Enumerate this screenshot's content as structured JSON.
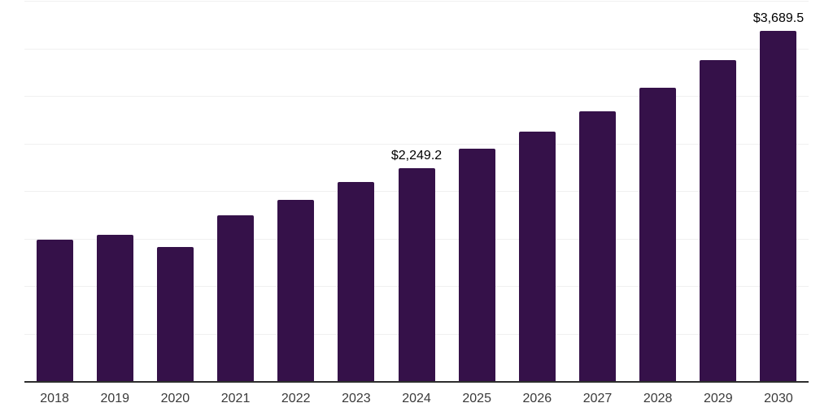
{
  "chart_data": {
    "type": "bar",
    "title": "",
    "xlabel": "",
    "ylabel": "",
    "categories": [
      "2018",
      "2019",
      "2020",
      "2021",
      "2022",
      "2023",
      "2024",
      "2025",
      "2026",
      "2027",
      "2028",
      "2029",
      "2030"
    ],
    "values": [
      1495,
      1550,
      1420,
      1750,
      1915,
      2100,
      2249.2,
      2450,
      2630,
      2850,
      3095,
      3385,
      3689.5
    ],
    "point_labels": {
      "2024": "$2,249.2",
      "2030": "$3,689.5"
    },
    "ylim": [
      0,
      4000
    ],
    "gridline_step": 500,
    "grid": "horizontal-only",
    "legend": "none",
    "y_axis_tick_labels_visible": false,
    "colors": {
      "bar": "#351149",
      "axis_line": "#2d2d2d",
      "gridline": "#f0f0f0",
      "tick_label": "#3a3a3a",
      "data_label": "#000000",
      "background": "#ffffff"
    }
  }
}
